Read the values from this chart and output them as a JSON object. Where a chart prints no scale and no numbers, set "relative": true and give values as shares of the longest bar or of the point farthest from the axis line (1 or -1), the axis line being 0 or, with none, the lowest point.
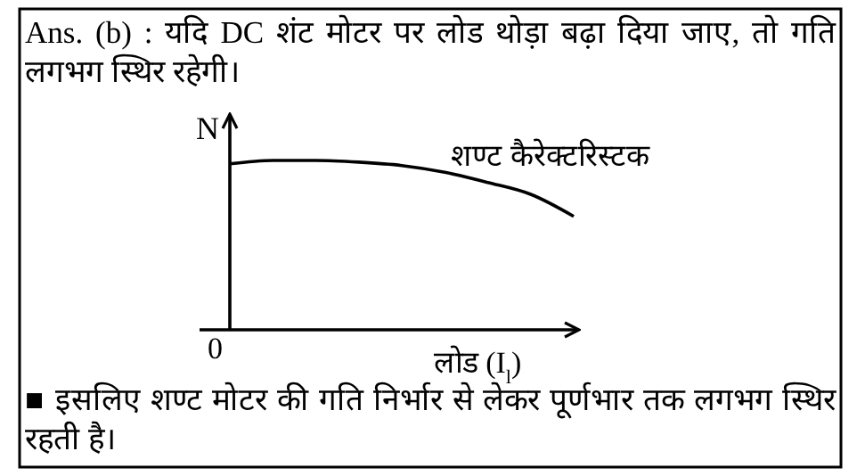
{
  "chart_data": {
    "type": "line",
    "relative": true,
    "title": "Ans. (b) : यदि DC शंट मोटर पर लोड थोड़ा बढ़ा दिया जाए, तो गति लगभग स्थिर रहेगी।",
    "ylabel": "N",
    "xlabel": "लोड (I$_{l}$)",
    "categories": [
      null,
      null,
      null,
      null,
      null,
      null,
      null,
      null,
      null
    ],
    "series": [
      {
        "name": "शण्ट कैरेक्टरिस्टक",
        "color": "#000000",
        "values": [
          0.98,
          1,
          1,
          0.99,
          0.97,
          0.93,
          0.87,
          0.8,
          0.67
        ]
      }
    ],
    "annotations": [
      "0",
      "■ इसलिए शण्ट मोटर की गति निर्भार से लेकर पूर्णभार तक लगभग स्थिर रहती है।"
    ]
  }
}
